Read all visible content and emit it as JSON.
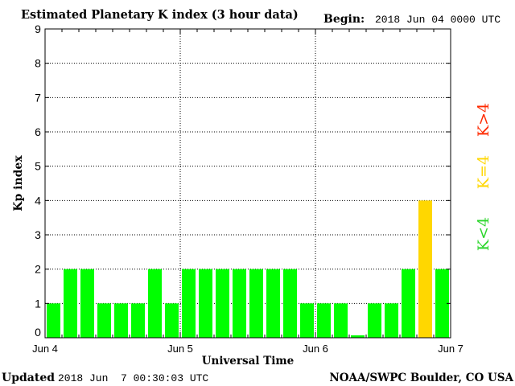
{
  "header": {
    "title": "Estimated Planetary K index (3 hour data)",
    "begin_label": "Begin:",
    "begin_value": "2018 Jun 04 0000 UTC"
  },
  "footer": {
    "updated_label": "Updated",
    "updated_value": "2018 Jun  7 00:30:03 UTC",
    "source": "NOAA/SWPC Boulder, CO USA"
  },
  "legend": {
    "high": "K>4",
    "mid": "K=4",
    "low": "K<4"
  },
  "colors": {
    "low": "#00ff00",
    "mid": "#ffd700",
    "high": "#ff2a00"
  },
  "chart_data": {
    "type": "bar",
    "title": "Estimated Planetary K index (3 hour data)",
    "xlabel": "Universal Time",
    "ylabel": "Kp index",
    "ylim": [
      0,
      9
    ],
    "yticks": [
      0,
      1,
      2,
      3,
      4,
      5,
      6,
      7,
      8,
      9
    ],
    "xticks": [
      "Jun 4",
      "Jun 5",
      "Jun 6",
      "Jun 7"
    ],
    "bars_per_day": 8,
    "days": 3,
    "grid": true,
    "values": [
      1,
      2,
      2,
      1,
      1,
      1,
      2,
      1,
      2,
      2,
      2,
      2,
      2,
      2,
      2,
      1,
      1,
      1,
      0.07,
      1,
      1,
      2,
      4,
      2
    ]
  }
}
